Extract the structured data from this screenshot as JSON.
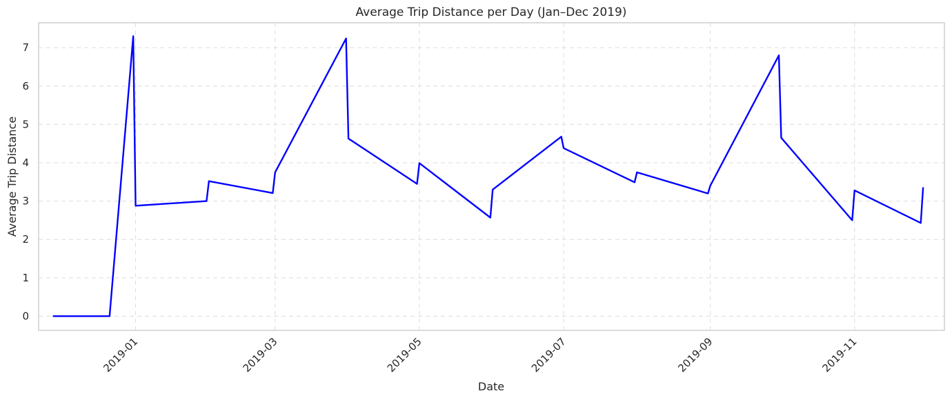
{
  "chart_data": {
    "type": "line",
    "title": "Average Trip Distance per Day (Jan–Dec 2019)",
    "xlabel": "Date",
    "ylabel": "Average Trip Distance",
    "x_ticks": [
      "2019-01",
      "2019-03",
      "2019-05",
      "2019-07",
      "2019-09",
      "2019-11"
    ],
    "y_ticks": [
      0,
      1,
      2,
      3,
      4,
      5,
      6,
      7
    ],
    "xlim": [
      "2018-11-21",
      "2019-12-09"
    ],
    "ylim": [
      -0.37,
      7.65
    ],
    "grid": true,
    "x_tick_rotation": 45,
    "series": [
      {
        "color": "#0000ff",
        "points": [
          {
            "x": "2018-11-27",
            "y": 0
          },
          {
            "x": "2018-12-21",
            "y": 0
          },
          {
            "x": "2018-12-31",
            "y": 7.3
          },
          {
            "x": "2019-01-01",
            "y": 2.88
          },
          {
            "x": "2019-01-31",
            "y": 3.0
          },
          {
            "x": "2019-02-01",
            "y": 3.52
          },
          {
            "x": "2019-02-28",
            "y": 3.21
          },
          {
            "x": "2019-03-01",
            "y": 3.75
          },
          {
            "x": "2019-03-31",
            "y": 7.24
          },
          {
            "x": "2019-04-01",
            "y": 4.63
          },
          {
            "x": "2019-04-30",
            "y": 3.45
          },
          {
            "x": "2019-05-01",
            "y": 3.99
          },
          {
            "x": "2019-05-31",
            "y": 2.57
          },
          {
            "x": "2019-06-01",
            "y": 3.3
          },
          {
            "x": "2019-06-30",
            "y": 4.68
          },
          {
            "x": "2019-07-01",
            "y": 4.38
          },
          {
            "x": "2019-07-31",
            "y": 3.49
          },
          {
            "x": "2019-08-01",
            "y": 3.75
          },
          {
            "x": "2019-08-31",
            "y": 3.2
          },
          {
            "x": "2019-09-01",
            "y": 3.4
          },
          {
            "x": "2019-09-30",
            "y": 6.8
          },
          {
            "x": "2019-10-01",
            "y": 4.65
          },
          {
            "x": "2019-10-31",
            "y": 2.5
          },
          {
            "x": "2019-11-01",
            "y": 3.28
          },
          {
            "x": "2019-11-29",
            "y": 2.43
          },
          {
            "x": "2019-11-30",
            "y": 3.36
          }
        ]
      }
    ]
  }
}
